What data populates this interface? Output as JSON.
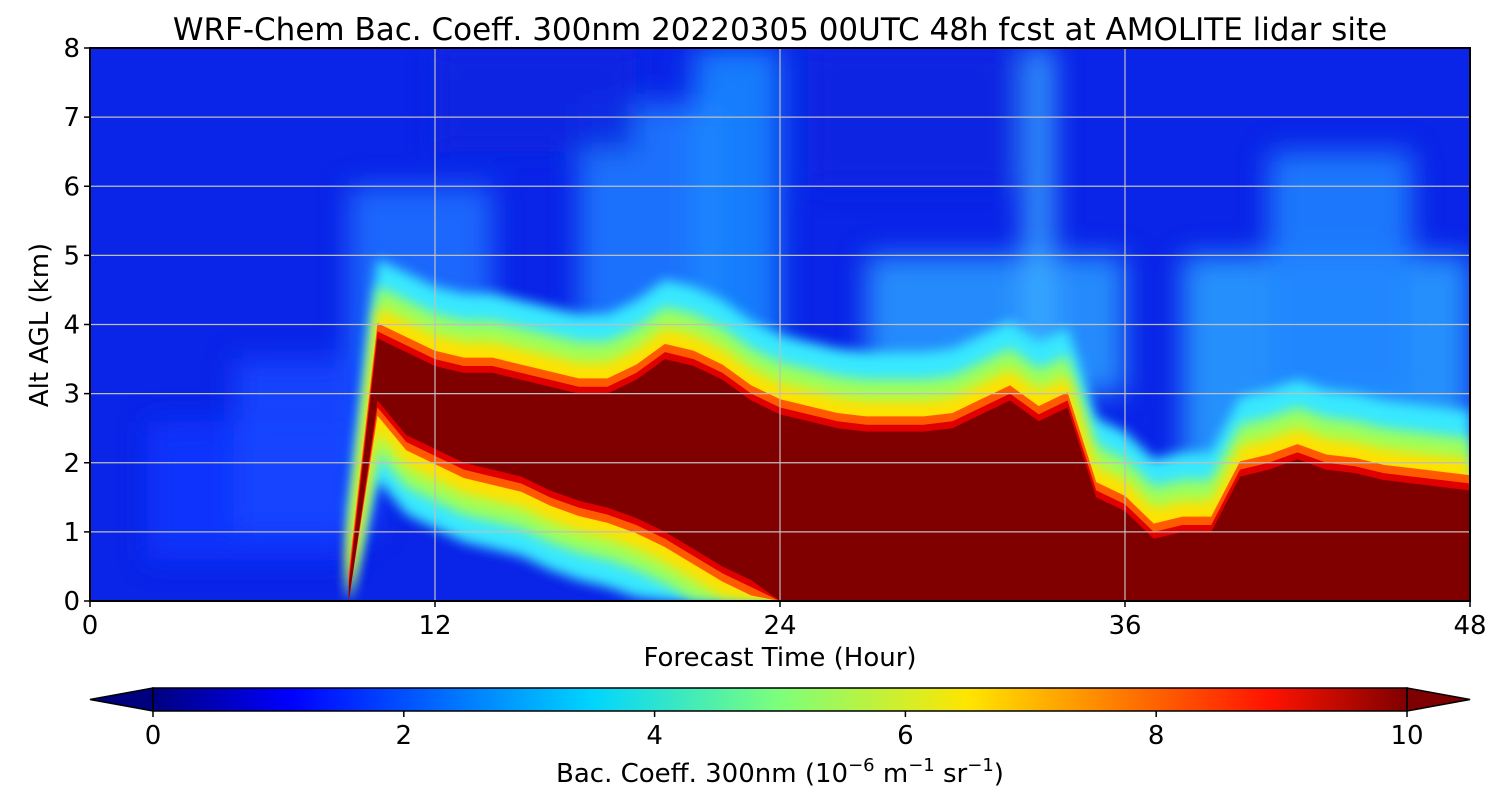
{
  "chart_data": {
    "type": "heatmap",
    "title": "WRF-Chem Bac. Coeff. 300nm  20220305 00UTC 48h fcst at AMOLITE lidar site",
    "xlabel": "Forecast Time (Hour)",
    "ylabel": "Alt AGL (km)",
    "xlim": [
      0,
      48
    ],
    "ylim": [
      0,
      8
    ],
    "x_ticks": [
      0,
      12,
      24,
      36,
      48
    ],
    "x_tick_labels": [
      "0",
      "12",
      "24",
      "36",
      "48"
    ],
    "y_ticks": [
      0,
      1,
      2,
      3,
      4,
      5,
      6,
      7,
      8
    ],
    "y_tick_labels": [
      "0",
      "1",
      "2",
      "3",
      "4",
      "5",
      "6",
      "7",
      "8"
    ],
    "grid": true,
    "colormap": "jet",
    "extend": "both",
    "colorbar": {
      "label_main": "Bac. Coeff. 300nm  (10",
      "label_exp1": "−6",
      "label_mid": " m",
      "label_exp2": "−1",
      "label_mid2": " sr",
      "label_exp3": "−1",
      "label_end": ")",
      "range": [
        0,
        10
      ],
      "ticks": [
        0,
        2,
        4,
        6,
        8,
        10
      ],
      "tick_labels": [
        "0",
        "2",
        "4",
        "6",
        "8",
        "10"
      ],
      "orientation": "horizontal",
      "placement": "bottom"
    },
    "time_hours": [
      0,
      1,
      3,
      5,
      7,
      8,
      9,
      10,
      11,
      12,
      13,
      14,
      15,
      16,
      17,
      18,
      19,
      20,
      21,
      22,
      23,
      24,
      25,
      26,
      27,
      28,
      29,
      30,
      31,
      32,
      33,
      34,
      35,
      36,
      37,
      38,
      39,
      40,
      41,
      42,
      43,
      44,
      45,
      46,
      47,
      48
    ],
    "high_aerosol_top_km": [
      0,
      0,
      0,
      0,
      0,
      0,
      0.2,
      3.8,
      3.6,
      3.4,
      3.3,
      3.3,
      3.2,
      3.1,
      3.0,
      3.0,
      3.2,
      3.5,
      3.4,
      3.2,
      2.9,
      2.7,
      2.6,
      2.5,
      2.45,
      2.45,
      2.45,
      2.5,
      2.7,
      2.9,
      2.6,
      2.8,
      1.5,
      1.3,
      0.9,
      1.0,
      1.0,
      1.8,
      1.9,
      2.05,
      1.9,
      1.85,
      1.75,
      1.7,
      1.65,
      1.6
    ],
    "high_aerosol_base_km": [
      0,
      0,
      0,
      0,
      0,
      0,
      0,
      2.9,
      2.4,
      2.2,
      2.0,
      1.9,
      1.8,
      1.6,
      1.45,
      1.35,
      1.2,
      1.0,
      0.75,
      0.5,
      0.3,
      0,
      0,
      0,
      0,
      0,
      0,
      0,
      0,
      0,
      0,
      0,
      0,
      0,
      0,
      0,
      0,
      0,
      0,
      0,
      0,
      0,
      0,
      0,
      0,
      0
    ]
  }
}
